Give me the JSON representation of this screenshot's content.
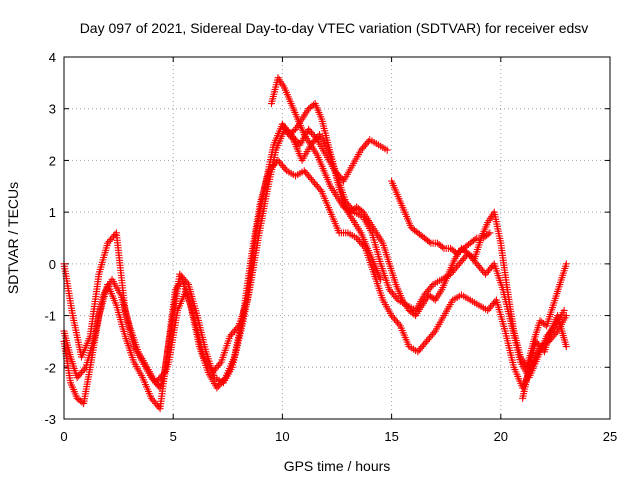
{
  "chart_data": {
    "type": "scatter",
    "title": "Day 097 of 2021, Sidereal Day-to-day VTEC variation (SDTVAR) for receiver edsv",
    "xlabel": "GPS time / hours",
    "ylabel": "SDTVAR / TECUs",
    "xlim": [
      0,
      25
    ],
    "ylim": [
      -3,
      4
    ],
    "xticks": [
      "0",
      "5",
      "10",
      "15",
      "20",
      "25"
    ],
    "yticks": [
      "-3",
      "-2",
      "-1",
      "0",
      "1",
      "2",
      "3",
      "4"
    ],
    "grid": true,
    "marker": "plus",
    "color": "#ff0000",
    "series": [
      {
        "x": [
          0.0,
          0.3,
          0.6,
          0.9,
          1.2,
          1.6,
          2.0,
          2.4,
          2.8,
          3.2,
          3.6,
          4.0,
          4.4,
          4.8,
          5.1,
          5.4,
          5.8,
          6.2,
          6.6,
          7.0,
          7.4,
          7.8,
          8.2,
          8.6,
          9.0,
          9.4,
          9.8,
          10.2,
          10.6,
          11.0,
          11.4,
          11.8,
          12.2,
          12.6,
          13.0,
          13.4,
          13.8,
          14.2,
          14.6,
          15.0,
          15.4,
          15.8,
          16.2,
          16.6,
          17.0,
          17.4,
          17.8,
          18.2,
          18.6,
          19.0,
          19.4,
          19.8,
          20.2,
          20.6,
          21.0,
          21.4,
          21.8,
          22.2,
          22.6,
          23.0
        ],
        "y": [
          -1.5,
          -2.3,
          -2.6,
          -2.7,
          -2.0,
          -1.0,
          -0.4,
          -0.8,
          -1.4,
          -1.9,
          -2.2,
          -2.6,
          -2.8,
          -1.5,
          -0.5,
          -0.3,
          -0.8,
          -1.6,
          -2.1,
          -2.4,
          -2.2,
          -1.8,
          -1.0,
          0.2,
          1.2,
          1.8,
          2.0,
          1.8,
          1.7,
          1.8,
          1.6,
          1.4,
          1.0,
          0.6,
          0.6,
          0.5,
          0.3,
          -0.2,
          -0.7,
          -1.0,
          -1.2,
          -1.6,
          -1.7,
          -1.5,
          -1.3,
          -1.0,
          -0.7,
          -0.6,
          -0.7,
          -0.8,
          -0.9,
          -0.7,
          -1.3,
          -2.0,
          -2.4,
          -2.0,
          -1.6,
          -1.5,
          -1.3,
          -1.0
        ]
      },
      {
        "x": [
          0.0,
          0.3,
          0.6,
          1.0,
          1.4,
          1.8,
          2.2,
          2.6,
          3.0,
          3.4,
          3.8,
          4.2,
          4.6,
          5.0,
          5.3,
          5.7,
          6.1,
          6.5,
          6.9,
          7.3,
          7.7,
          8.1,
          8.5,
          8.9,
          9.3,
          9.7,
          10.1,
          10.5,
          10.9,
          11.3,
          11.7,
          12.1,
          12.5,
          12.9,
          13.3,
          13.7,
          14.1,
          14.5,
          14.9,
          15.3,
          15.7,
          16.1,
          16.5,
          16.9,
          17.3,
          17.7,
          18.1,
          18.5,
          18.9,
          19.3,
          19.7,
          20.1,
          20.5,
          20.9,
          21.3,
          21.7,
          22.1,
          22.5,
          22.9
        ],
        "y": [
          -1.3,
          -1.8,
          -2.2,
          -2.0,
          -1.4,
          -0.6,
          -0.3,
          -0.6,
          -1.2,
          -1.7,
          -2.0,
          -2.3,
          -2.1,
          -1.0,
          -0.2,
          -0.4,
          -1.0,
          -1.7,
          -2.2,
          -2.3,
          -2.0,
          -1.3,
          -0.5,
          0.5,
          1.4,
          2.2,
          2.6,
          2.4,
          2.0,
          2.3,
          2.5,
          2.2,
          1.7,
          1.2,
          1.0,
          0.9,
          0.6,
          0.0,
          -0.5,
          -0.7,
          -0.8,
          -0.9,
          -0.6,
          -0.4,
          -0.3,
          -0.2,
          0.0,
          0.2,
          0.0,
          -0.2,
          0.0,
          -0.5,
          -1.2,
          -1.9,
          -2.2,
          -1.8,
          -1.4,
          -1.2,
          -0.9
        ]
      },
      {
        "x": [
          0.0,
          0.4,
          0.8,
          1.2,
          1.6,
          2.0,
          2.4,
          2.8,
          3.2,
          3.6,
          4.0,
          4.4,
          4.8,
          5.2,
          5.6,
          6.0,
          6.4,
          6.8,
          7.2,
          7.6,
          8.0,
          8.4,
          8.8,
          9.2,
          9.6,
          10.0,
          10.4,
          10.8,
          11.2,
          11.6,
          12.0,
          12.4,
          12.8,
          13.2,
          13.6,
          14.0,
          14.4,
          14.8
        ],
        "y": [
          0.0,
          -1.0,
          -1.8,
          -1.4,
          -0.2,
          0.4,
          0.6,
          -0.9,
          -1.6,
          -1.9,
          -2.2,
          -2.4,
          -1.9,
          -0.9,
          -0.5,
          -1.1,
          -1.8,
          -2.1,
          -1.9,
          -1.4,
          -1.2,
          -0.7,
          0.6,
          1.5,
          2.3,
          2.7,
          2.5,
          2.3,
          2.6,
          2.4,
          2.1,
          1.8,
          1.6,
          1.9,
          2.2,
          2.4,
          2.3,
          2.2
        ]
      },
      {
        "x": [
          9.5,
          9.8,
          10.1,
          10.4,
          10.7,
          11.0,
          11.3,
          11.6,
          11.9,
          12.2,
          12.5,
          12.8,
          13.1,
          13.4,
          13.7,
          14.0,
          14.3,
          14.6,
          14.9,
          15.2,
          15.5,
          15.8,
          16.1,
          16.4,
          16.7,
          17.0,
          17.3,
          17.6,
          17.9,
          18.2,
          18.5,
          18.8,
          19.1,
          19.4,
          19.7,
          20.0,
          20.3,
          20.6,
          20.9,
          21.2,
          21.5,
          21.8,
          22.1,
          22.4,
          22.7,
          23.0
        ],
        "y": [
          3.1,
          3.6,
          3.4,
          3.1,
          2.8,
          2.5,
          2.3,
          2.1,
          1.8,
          1.5,
          1.3,
          1.1,
          1.0,
          1.1,
          1.0,
          0.8,
          0.6,
          0.4,
          0.0,
          -0.4,
          -0.7,
          -0.9,
          -1.0,
          -0.8,
          -0.6,
          -0.7,
          -0.5,
          -0.2,
          0.1,
          0.3,
          0.2,
          0.1,
          0.5,
          0.8,
          1.0,
          0.4,
          -0.5,
          -1.3,
          -1.8,
          -2.0,
          -1.5,
          -1.1,
          -1.2,
          -0.8,
          -0.4,
          0.0
        ]
      },
      {
        "x": [
          10.0,
          10.3,
          10.6,
          10.9,
          11.2,
          11.5,
          11.8,
          12.1,
          12.4,
          12.7,
          13.0,
          13.3,
          13.6,
          13.9,
          14.2,
          14.5
        ],
        "y": [
          2.7,
          2.5,
          2.6,
          2.8,
          3.0,
          3.1,
          2.8,
          2.3,
          1.8,
          1.3,
          1.0,
          0.8,
          0.6,
          0.3,
          0.0,
          -0.3
        ]
      },
      {
        "x": [
          15.0,
          15.3,
          15.6,
          15.9,
          16.2,
          16.5,
          16.8,
          17.1,
          17.4,
          17.7,
          18.0,
          18.3,
          18.6,
          18.9,
          19.2,
          19.5
        ],
        "y": [
          1.6,
          1.3,
          1.0,
          0.7,
          0.6,
          0.5,
          0.4,
          0.4,
          0.3,
          0.3,
          0.2,
          0.3,
          0.4,
          0.5,
          0.5,
          0.6
        ]
      },
      {
        "x": [
          21.0,
          21.2,
          21.4,
          21.6,
          21.8,
          22.0,
          22.2,
          22.4,
          22.6,
          22.8,
          23.0
        ],
        "y": [
          -2.6,
          -2.2,
          -1.8,
          -1.5,
          -1.6,
          -1.7,
          -1.4,
          -1.2,
          -1.0,
          -1.3,
          -1.6
        ]
      }
    ]
  }
}
